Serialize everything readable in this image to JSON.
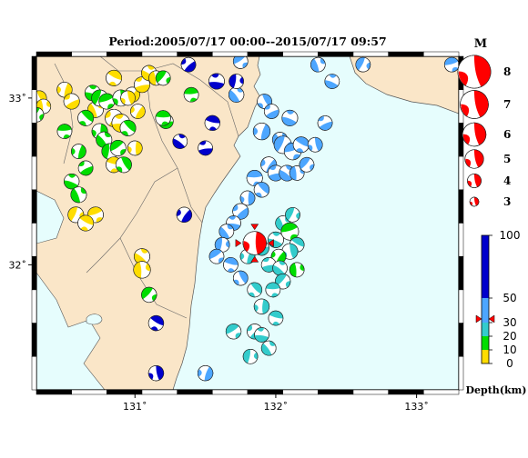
{
  "title": "Period:2005/07/17 00:00--2015/07/17 09:57",
  "map": {
    "lon_range": [
      130.3,
      133.3
    ],
    "lat_range": [
      31.25,
      33.25
    ],
    "x_ticks": [
      {
        "value": 131,
        "label": "131˚"
      },
      {
        "value": 132,
        "label": "132˚"
      },
      {
        "value": 133,
        "label": "133˚"
      }
    ],
    "y_ticks": [
      {
        "value": 33,
        "label": "33˚"
      },
      {
        "value": 32,
        "label": "32˚"
      }
    ],
    "land_color": "#fae6c8",
    "sea_color": "#e6fdfd",
    "main_event": {
      "lon": 131.85,
      "lat": 32.13,
      "magnitude": 5.1
    }
  },
  "magnitude_legend": {
    "title": "M",
    "items": [
      {
        "label": "8",
        "m": 8
      },
      {
        "label": "7",
        "m": 7
      },
      {
        "label": "6",
        "m": 6
      },
      {
        "label": "5",
        "m": 5
      },
      {
        "label": "4",
        "m": 4
      },
      {
        "label": "3",
        "m": 3
      }
    ],
    "color": "#ff0000"
  },
  "depth_legend": {
    "title": "Depth(km)",
    "ticks": [
      {
        "label": "100",
        "value": 100
      },
      {
        "label": "50",
        "value": 50
      },
      {
        "label": "30",
        "value": 30
      },
      {
        "label": "20",
        "value": 20
      },
      {
        "label": "10",
        "value": 10
      },
      {
        "label": "0",
        "value": 0
      }
    ],
    "bands": [
      {
        "from": 0,
        "to": 10,
        "color": "#ffdd00"
      },
      {
        "from": 10,
        "to": 20,
        "color": "#00dd00"
      },
      {
        "from": 20,
        "to": 30,
        "color": "#33cccc"
      },
      {
        "from": 30,
        "to": 50,
        "color": "#4da6ff"
      },
      {
        "from": 50,
        "to": 100,
        "color": "#0000cc"
      }
    ],
    "marker_depth": 33
  },
  "chart_data": {
    "type": "scatter",
    "x_unit": "longitude (°E)",
    "y_unit": "latitude (°N)",
    "point_fields": [
      "lon",
      "lat",
      "magnitude",
      "depth_km"
    ],
    "points": [
      [
        130.32,
        33.0,
        3.6,
        5
      ],
      [
        130.5,
        33.05,
        3.7,
        5
      ],
      [
        130.55,
        32.98,
        3.8,
        5
      ],
      [
        130.7,
        33.03,
        3.8,
        12
      ],
      [
        130.72,
        32.93,
        3.8,
        5
      ],
      [
        130.75,
        33.0,
        3.9,
        12
      ],
      [
        130.8,
        32.98,
        3.8,
        15
      ],
      [
        130.85,
        33.12,
        3.8,
        5
      ],
      [
        130.9,
        33.0,
        3.9,
        12
      ],
      [
        130.98,
        33.02,
        3.7,
        5
      ],
      [
        131.05,
        33.08,
        3.8,
        5
      ],
      [
        131.1,
        33.15,
        3.7,
        5
      ],
      [
        131.15,
        33.12,
        3.6,
        5
      ],
      [
        131.2,
        33.12,
        3.6,
        15
      ],
      [
        131.4,
        33.02,
        3.6,
        15
      ],
      [
        130.65,
        32.88,
        3.8,
        12
      ],
      [
        130.75,
        32.8,
        3.8,
        12
      ],
      [
        130.85,
        32.88,
        4.1,
        5
      ],
      [
        130.9,
        32.85,
        4.2,
        5
      ],
      [
        130.78,
        32.75,
        3.8,
        12
      ],
      [
        130.82,
        32.68,
        3.8,
        12
      ],
      [
        130.88,
        32.7,
        3.8,
        12
      ],
      [
        130.85,
        32.6,
        3.8,
        5
      ],
      [
        130.92,
        32.6,
        3.8,
        12
      ],
      [
        130.6,
        32.68,
        3.6,
        12
      ],
      [
        130.65,
        32.58,
        3.6,
        12
      ],
      [
        130.55,
        32.5,
        3.7,
        12
      ],
      [
        130.6,
        32.42,
        3.8,
        15
      ],
      [
        130.58,
        32.3,
        3.8,
        5
      ],
      [
        130.72,
        32.3,
        3.8,
        5
      ],
      [
        130.65,
        32.25,
        3.8,
        5
      ],
      [
        130.95,
        33.0,
        3.6,
        5
      ],
      [
        131.02,
        32.92,
        3.6,
        5
      ],
      [
        131.22,
        32.86,
        3.6,
        15
      ],
      [
        131.32,
        32.74,
        3.6,
        55
      ],
      [
        130.35,
        32.95,
        3.6,
        5
      ],
      [
        130.3,
        32.9,
        3.6,
        15
      ],
      [
        130.5,
        32.8,
        3.6,
        12
      ],
      [
        130.95,
        32.82,
        3.8,
        12
      ],
      [
        131.0,
        32.7,
        3.6,
        5
      ],
      [
        131.38,
        33.2,
        3.6,
        55
      ],
      [
        131.58,
        33.1,
        3.8,
        55
      ],
      [
        131.72,
        33.02,
        3.7,
        35
      ],
      [
        131.72,
        33.1,
        3.6,
        55
      ],
      [
        131.75,
        33.22,
        3.6,
        35
      ],
      [
        131.55,
        32.85,
        3.7,
        55
      ],
      [
        131.92,
        32.98,
        3.6,
        35
      ],
      [
        131.9,
        32.8,
        4.0,
        35
      ],
      [
        131.97,
        32.92,
        3.6,
        35
      ],
      [
        132.1,
        32.88,
        3.8,
        35
      ],
      [
        132.03,
        32.75,
        3.7,
        35
      ],
      [
        132.05,
        32.72,
        4.1,
        35
      ],
      [
        132.12,
        32.68,
        4.0,
        35
      ],
      [
        132.18,
        32.72,
        3.8,
        35
      ],
      [
        132.28,
        32.72,
        3.6,
        35
      ],
      [
        131.95,
        32.6,
        3.8,
        35
      ],
      [
        132.0,
        32.55,
        3.8,
        35
      ],
      [
        132.08,
        32.55,
        3.8,
        35
      ],
      [
        132.15,
        32.55,
        3.6,
        35
      ],
      [
        132.22,
        32.6,
        3.6,
        35
      ],
      [
        131.85,
        32.52,
        3.8,
        35
      ],
      [
        131.9,
        32.45,
        3.7,
        35
      ],
      [
        131.8,
        32.4,
        3.6,
        35
      ],
      [
        131.75,
        32.32,
        3.8,
        35
      ],
      [
        131.7,
        32.25,
        3.6,
        35
      ],
      [
        131.65,
        32.2,
        3.6,
        35
      ],
      [
        131.62,
        32.12,
        3.6,
        35
      ],
      [
        131.58,
        32.05,
        3.6,
        35
      ],
      [
        131.68,
        32.0,
        3.6,
        35
      ],
      [
        131.75,
        31.92,
        3.6,
        35
      ],
      [
        131.8,
        32.05,
        3.6,
        25
      ],
      [
        131.9,
        32.1,
        3.6,
        25
      ],
      [
        132.0,
        32.15,
        3.8,
        25
      ],
      [
        132.05,
        32.25,
        3.6,
        25
      ],
      [
        132.12,
        32.3,
        3.6,
        25
      ],
      [
        132.1,
        32.2,
        4.1,
        15
      ],
      [
        132.15,
        32.12,
        3.6,
        25
      ],
      [
        132.1,
        32.08,
        3.8,
        25
      ],
      [
        132.02,
        32.05,
        3.6,
        15
      ],
      [
        131.95,
        32.0,
        3.6,
        25
      ],
      [
        132.03,
        31.98,
        3.6,
        25
      ],
      [
        132.15,
        31.97,
        3.6,
        15
      ],
      [
        132.05,
        31.9,
        3.7,
        25
      ],
      [
        131.98,
        31.85,
        3.6,
        25
      ],
      [
        131.85,
        31.85,
        3.6,
        25
      ],
      [
        131.9,
        31.75,
        3.7,
        25
      ],
      [
        131.85,
        31.6,
        3.7,
        25
      ],
      [
        131.9,
        31.58,
        3.6,
        25
      ],
      [
        131.95,
        31.5,
        3.6,
        25
      ],
      [
        131.82,
        31.45,
        3.6,
        25
      ],
      [
        131.7,
        31.6,
        3.7,
        25
      ],
      [
        132.0,
        31.68,
        3.6,
        25
      ],
      [
        131.6,
        31.2,
        3.7,
        25
      ],
      [
        131.5,
        31.35,
        3.7,
        35
      ],
      [
        132.35,
        32.85,
        3.6,
        35
      ],
      [
        132.4,
        33.1,
        3.6,
        35
      ],
      [
        132.3,
        33.2,
        3.6,
        35
      ],
      [
        132.62,
        33.2,
        3.6,
        35
      ],
      [
        133.25,
        33.2,
        3.6,
        35
      ],
      [
        131.15,
        31.65,
        3.7,
        55
      ],
      [
        131.15,
        31.35,
        3.7,
        55
      ],
      [
        131.35,
        32.3,
        3.7,
        55
      ],
      [
        131.5,
        32.7,
        3.6,
        55
      ],
      [
        131.05,
        32.05,
        3.8,
        5
      ],
      [
        131.05,
        31.97,
        4.0,
        5
      ],
      [
        131.1,
        31.82,
        3.7,
        12
      ],
      [
        131.2,
        32.88,
        3.7,
        12
      ]
    ]
  }
}
